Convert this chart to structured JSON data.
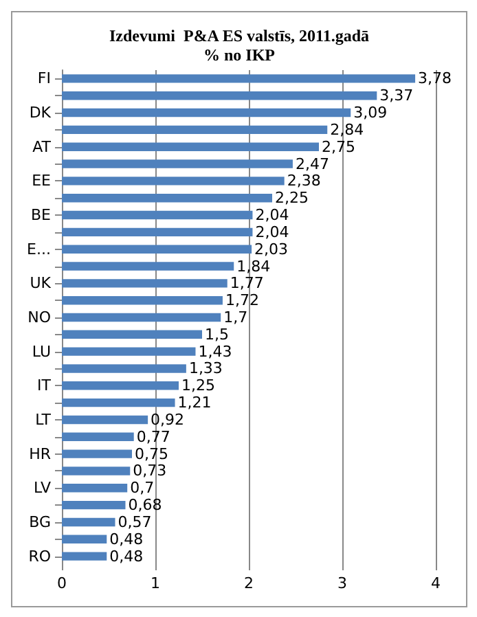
{
  "chart_data": {
    "type": "bar",
    "orientation": "horizontal",
    "title": "Izdevumi  P&A ES valstīs, 2011.gadā",
    "subtitle": "% no IKP",
    "categories": [
      "FI",
      null,
      "DK",
      null,
      "AT",
      null,
      "EE",
      null,
      "BE",
      null,
      "E...",
      null,
      "UK",
      null,
      "NO",
      null,
      "LU",
      null,
      "IT",
      null,
      "LT",
      null,
      "HR",
      null,
      "LV",
      null,
      "BG",
      null,
      "RO"
    ],
    "values": [
      3.78,
      3.37,
      3.09,
      2.84,
      2.75,
      2.47,
      2.38,
      2.25,
      2.04,
      2.04,
      2.03,
      1.84,
      1.77,
      1.72,
      1.7,
      1.5,
      1.43,
      1.33,
      1.25,
      1.21,
      0.92,
      0.77,
      0.75,
      0.73,
      0.7,
      0.68,
      0.57,
      0.48,
      0.48
    ],
    "value_labels": [
      "3,78",
      "3,37",
      "3,09",
      "2,84",
      "2,75",
      "2,47",
      "2,38",
      "2,25",
      "2,04",
      "2,04",
      "2,03",
      "1,84",
      "1,77",
      "1,72",
      "1,7",
      "1,5",
      "1,43",
      "1,33",
      "1,25",
      "1,21",
      "0,92",
      "0,77",
      "0,75",
      "0,73",
      "0,7",
      "0,68",
      "0,57",
      "0,48",
      "0,48"
    ],
    "color": "#4f81bd",
    "xlim": [
      0,
      4
    ],
    "xticks": [
      0,
      1,
      2,
      3,
      4
    ],
    "grid": "x"
  }
}
